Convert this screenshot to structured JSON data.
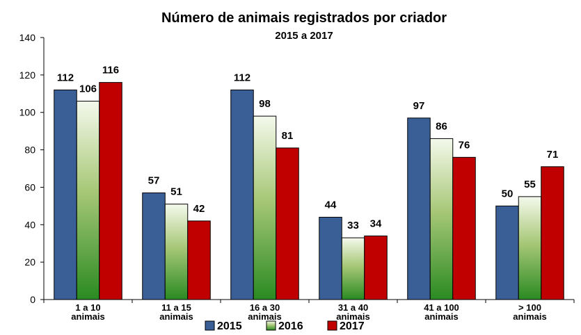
{
  "chart_data": {
    "type": "bar",
    "title": "Número de animais registrados por criador",
    "subtitle": "2015 a 2017",
    "categories": [
      "1 a 10\nanimais",
      "11 a 15\nanimais",
      "16 a 30\nanimais",
      "31 a 40\nanimais",
      "41 a 100\nanimais",
      "> 100\nanimais"
    ],
    "series": [
      {
        "name": "2015",
        "color": "#3a5f96",
        "values": [
          112,
          57,
          112,
          44,
          97,
          50
        ]
      },
      {
        "name": "2016",
        "color": "#2a8a22",
        "values": [
          106,
          51,
          98,
          33,
          86,
          55
        ]
      },
      {
        "name": "2017",
        "color": "#c00000",
        "values": [
          116,
          42,
          81,
          34,
          76,
          71
        ]
      }
    ],
    "ylim": [
      0,
      140
    ],
    "yticks": [
      0,
      20,
      40,
      60,
      80,
      100,
      120,
      140
    ],
    "grid": false,
    "legend": "bottom"
  }
}
